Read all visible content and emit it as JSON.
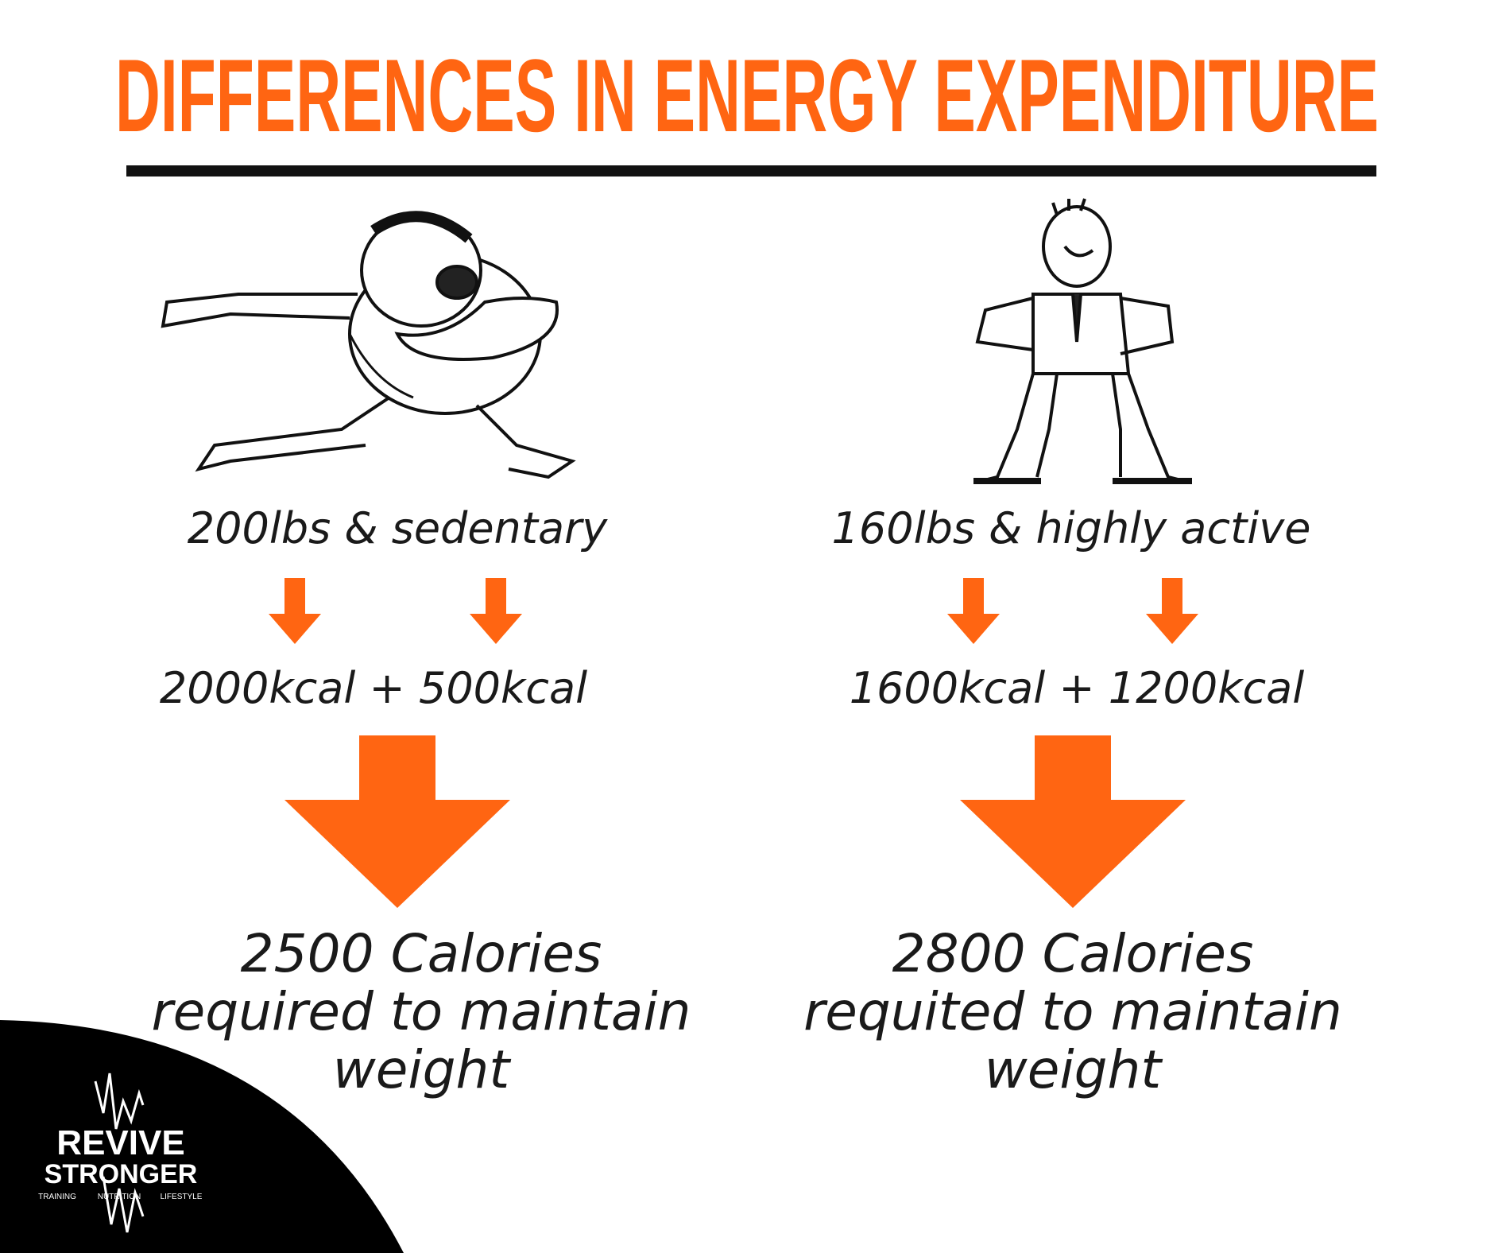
{
  "header": {
    "title": "DIFFERENCES IN ENERGY EXPENDITURE"
  },
  "columns": [
    {
      "profile": "200lbs & sedentary",
      "breakdown": "2000kcal + 500kcal",
      "result_lines": [
        "2500 Calories",
        "required to maintain",
        "weight"
      ]
    },
    {
      "profile": "160lbs & highly active",
      "breakdown": "1600kcal + 1200kcal",
      "result_lines": [
        "2800 Calories",
        "requited to maintain",
        "weight"
      ]
    }
  ],
  "logo": {
    "name_lines": [
      "REVIVE",
      "STRONGER"
    ],
    "tagline": [
      "TRAINING",
      "NUTRITION",
      "LIFESTYLE"
    ]
  }
}
